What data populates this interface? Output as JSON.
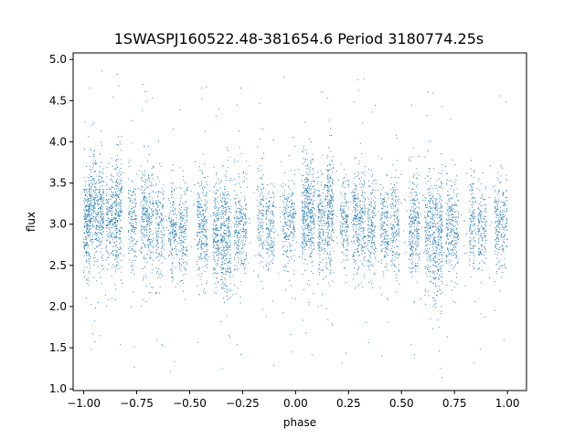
{
  "chart_data": {
    "type": "scatter",
    "title": "1SWASPJ160522.48-381654.6 Period 3180774.25s",
    "xlabel": "phase",
    "ylabel": "flux",
    "xlim": [
      -1.05,
      1.09
    ],
    "ylim": [
      0.98,
      5.08
    ],
    "xticks": [
      -1.0,
      -0.75,
      -0.5,
      -0.25,
      0.0,
      0.25,
      0.5,
      0.75,
      1.0
    ],
    "xtick_labels": [
      "−1.00",
      "−0.75",
      "−0.50",
      "−0.25",
      "0.00",
      "0.25",
      "0.50",
      "0.75",
      "1.00"
    ],
    "yticks": [
      1.0,
      1.5,
      2.0,
      2.5,
      3.0,
      3.5,
      4.0,
      4.5,
      5.0
    ],
    "ytick_labels": [
      "1.0",
      "1.5",
      "2.0",
      "2.5",
      "3.0",
      "3.5",
      "4.0",
      "4.5",
      "5.0"
    ],
    "grid": false,
    "legend": "none",
    "point_color": "#1f77b4",
    "phase_range": [
      -1.0,
      1.0
    ],
    "series": [
      {
        "clusters": [
          {
            "phase": -0.985,
            "width": 0.015,
            "mean": 3.0,
            "sd": 0.28,
            "n": 220
          },
          {
            "phase": -0.94,
            "width": 0.035,
            "mean": 3.15,
            "sd": 0.33,
            "n": 420
          },
          {
            "phase": -0.87,
            "width": 0.025,
            "mean": 3.05,
            "sd": 0.3,
            "n": 230
          },
          {
            "phase": -0.835,
            "width": 0.015,
            "mean": 3.2,
            "sd": 0.35,
            "n": 200
          },
          {
            "phase": -0.77,
            "width": 0.02,
            "mean": 3.05,
            "sd": 0.28,
            "n": 160
          },
          {
            "phase": -0.7,
            "width": 0.03,
            "mean": 3.05,
            "sd": 0.33,
            "n": 300
          },
          {
            "phase": -0.64,
            "width": 0.02,
            "mean": 2.95,
            "sd": 0.3,
            "n": 170
          },
          {
            "phase": -0.58,
            "width": 0.02,
            "mean": 2.95,
            "sd": 0.28,
            "n": 160
          },
          {
            "phase": -0.53,
            "width": 0.02,
            "mean": 2.95,
            "sd": 0.32,
            "n": 170
          },
          {
            "phase": -0.44,
            "width": 0.025,
            "mean": 2.95,
            "sd": 0.32,
            "n": 260
          },
          {
            "phase": -0.375,
            "width": 0.015,
            "mean": 2.9,
            "sd": 0.33,
            "n": 170
          },
          {
            "phase": -0.33,
            "width": 0.025,
            "mean": 2.8,
            "sd": 0.38,
            "n": 320
          },
          {
            "phase": -0.26,
            "width": 0.03,
            "mean": 2.95,
            "sd": 0.3,
            "n": 250
          },
          {
            "phase": -0.165,
            "width": 0.015,
            "mean": 3.05,
            "sd": 0.32,
            "n": 120
          },
          {
            "phase": -0.12,
            "width": 0.02,
            "mean": 2.95,
            "sd": 0.25,
            "n": 150
          },
          {
            "phase": -0.03,
            "width": 0.03,
            "mean": 3.0,
            "sd": 0.27,
            "n": 230
          },
          {
            "phase": 0.06,
            "width": 0.03,
            "mean": 3.15,
            "sd": 0.33,
            "n": 400
          },
          {
            "phase": 0.13,
            "width": 0.025,
            "mean": 3.05,
            "sd": 0.3,
            "n": 230
          },
          {
            "phase": 0.165,
            "width": 0.015,
            "mean": 3.2,
            "sd": 0.35,
            "n": 200
          },
          {
            "phase": 0.23,
            "width": 0.02,
            "mean": 3.05,
            "sd": 0.28,
            "n": 160
          },
          {
            "phase": 0.3,
            "width": 0.03,
            "mean": 3.05,
            "sd": 0.33,
            "n": 300
          },
          {
            "phase": 0.36,
            "width": 0.02,
            "mean": 2.95,
            "sd": 0.3,
            "n": 170
          },
          {
            "phase": 0.42,
            "width": 0.02,
            "mean": 2.95,
            "sd": 0.28,
            "n": 160
          },
          {
            "phase": 0.47,
            "width": 0.02,
            "mean": 2.95,
            "sd": 0.32,
            "n": 170
          },
          {
            "phase": 0.56,
            "width": 0.025,
            "mean": 2.95,
            "sd": 0.32,
            "n": 260
          },
          {
            "phase": 0.625,
            "width": 0.015,
            "mean": 2.9,
            "sd": 0.33,
            "n": 170
          },
          {
            "phase": 0.67,
            "width": 0.025,
            "mean": 2.8,
            "sd": 0.38,
            "n": 320
          },
          {
            "phase": 0.74,
            "width": 0.03,
            "mean": 2.95,
            "sd": 0.3,
            "n": 250
          },
          {
            "phase": 0.835,
            "width": 0.015,
            "mean": 3.05,
            "sd": 0.32,
            "n": 120
          },
          {
            "phase": 0.88,
            "width": 0.02,
            "mean": 2.95,
            "sd": 0.25,
            "n": 150
          },
          {
            "phase": 0.97,
            "width": 0.03,
            "mean": 3.0,
            "sd": 0.27,
            "n": 230
          }
        ]
      }
    ]
  }
}
